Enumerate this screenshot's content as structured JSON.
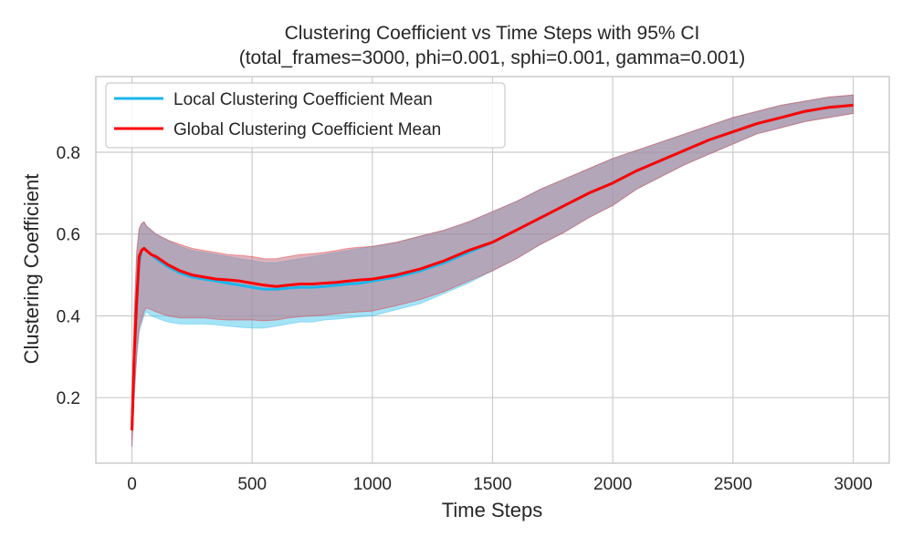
{
  "chart_data": {
    "type": "line",
    "title": "Clustering Coefficient vs Time Steps with 95% CI",
    "subtitle": "(total_frames=3000, phi=0.001, sphi=0.001, gamma=0.001)",
    "xlabel": "Time Steps",
    "ylabel": "Clustering Coefficient",
    "xlim": [
      -150,
      3150
    ],
    "ylim": [
      0.04,
      0.985
    ],
    "xticks": [
      0,
      500,
      1000,
      1500,
      2000,
      2500,
      3000
    ],
    "yticks": [
      0.2,
      0.4,
      0.6,
      0.8
    ],
    "grid": true,
    "legend_position": "top-left",
    "series": [
      {
        "name": "Local Clustering Coefficient Mean",
        "color": "#1ab6ec",
        "band_color": "#4cc7f0",
        "x": [
          0,
          10,
          20,
          30,
          40,
          50,
          60,
          80,
          100,
          150,
          200,
          250,
          300,
          350,
          400,
          450,
          500,
          550,
          600,
          650,
          700,
          750,
          800,
          850,
          900,
          950,
          1000,
          1100,
          1200,
          1300,
          1400,
          1500,
          1600,
          1700,
          1800,
          1900,
          2000,
          2100,
          2200,
          2300,
          2400,
          2500,
          2600,
          2700,
          2800,
          2900,
          3000
        ],
        "y": [
          0.12,
          0.3,
          0.43,
          0.53,
          0.56,
          0.565,
          0.56,
          0.55,
          0.54,
          0.52,
          0.505,
          0.495,
          0.49,
          0.485,
          0.48,
          0.475,
          0.47,
          0.465,
          0.465,
          0.468,
          0.47,
          0.47,
          0.472,
          0.475,
          0.478,
          0.48,
          0.485,
          0.495,
          0.51,
          0.53,
          0.555,
          0.58,
          0.61,
          0.64,
          0.67,
          0.7,
          0.725,
          0.755,
          0.78,
          0.805,
          0.83,
          0.85,
          0.87,
          0.885,
          0.9,
          0.91,
          0.915
        ],
        "ci_lower": [
          0.08,
          0.2,
          0.3,
          0.36,
          0.38,
          0.4,
          0.41,
          0.4,
          0.395,
          0.385,
          0.38,
          0.38,
          0.38,
          0.378,
          0.375,
          0.372,
          0.37,
          0.37,
          0.375,
          0.38,
          0.385,
          0.385,
          0.39,
          0.392,
          0.395,
          0.398,
          0.4,
          0.415,
          0.43,
          0.455,
          0.48,
          0.51,
          0.54,
          0.575,
          0.605,
          0.64,
          0.67,
          0.71,
          0.74,
          0.77,
          0.795,
          0.82,
          0.845,
          0.86,
          0.875,
          0.885,
          0.895
        ],
        "ci_upper": [
          0.16,
          0.4,
          0.55,
          0.61,
          0.625,
          0.63,
          0.62,
          0.61,
          0.6,
          0.585,
          0.57,
          0.56,
          0.555,
          0.55,
          0.545,
          0.54,
          0.535,
          0.53,
          0.53,
          0.535,
          0.54,
          0.545,
          0.55,
          0.555,
          0.56,
          0.565,
          0.57,
          0.58,
          0.595,
          0.61,
          0.63,
          0.655,
          0.68,
          0.71,
          0.735,
          0.76,
          0.785,
          0.805,
          0.825,
          0.845,
          0.865,
          0.885,
          0.9,
          0.915,
          0.925,
          0.935,
          0.94
        ]
      },
      {
        "name": "Global Clustering Coefficient Mean",
        "color": "#ff0000",
        "band_color": "#c07585",
        "x": [
          0,
          10,
          20,
          30,
          40,
          50,
          60,
          80,
          100,
          150,
          200,
          250,
          300,
          350,
          400,
          450,
          500,
          550,
          600,
          650,
          700,
          750,
          800,
          850,
          900,
          950,
          1000,
          1100,
          1200,
          1300,
          1400,
          1500,
          1600,
          1700,
          1800,
          1900,
          2000,
          2100,
          2200,
          2300,
          2400,
          2500,
          2600,
          2700,
          2800,
          2900,
          3000
        ],
        "y": [
          0.12,
          0.31,
          0.44,
          0.545,
          0.56,
          0.565,
          0.56,
          0.55,
          0.545,
          0.525,
          0.51,
          0.5,
          0.495,
          0.49,
          0.488,
          0.485,
          0.48,
          0.475,
          0.472,
          0.475,
          0.478,
          0.478,
          0.48,
          0.482,
          0.485,
          0.488,
          0.49,
          0.5,
          0.515,
          0.535,
          0.56,
          0.58,
          0.61,
          0.64,
          0.67,
          0.7,
          0.725,
          0.755,
          0.78,
          0.805,
          0.83,
          0.85,
          0.87,
          0.885,
          0.9,
          0.91,
          0.915
        ],
        "ci_lower": [
          0.08,
          0.21,
          0.31,
          0.37,
          0.39,
          0.41,
          0.42,
          0.415,
          0.41,
          0.4,
          0.395,
          0.395,
          0.395,
          0.392,
          0.39,
          0.39,
          0.39,
          0.388,
          0.39,
          0.395,
          0.398,
          0.4,
          0.402,
          0.405,
          0.408,
          0.41,
          0.412,
          0.425,
          0.44,
          0.46,
          0.485,
          0.51,
          0.54,
          0.575,
          0.605,
          0.64,
          0.67,
          0.71,
          0.74,
          0.77,
          0.795,
          0.82,
          0.845,
          0.86,
          0.875,
          0.885,
          0.895
        ],
        "ci_upper": [
          0.16,
          0.41,
          0.56,
          0.615,
          0.625,
          0.63,
          0.62,
          0.61,
          0.6,
          0.585,
          0.575,
          0.565,
          0.56,
          0.555,
          0.55,
          0.548,
          0.545,
          0.54,
          0.54,
          0.545,
          0.55,
          0.552,
          0.555,
          0.56,
          0.565,
          0.568,
          0.57,
          0.58,
          0.595,
          0.61,
          0.63,
          0.655,
          0.68,
          0.71,
          0.735,
          0.76,
          0.785,
          0.805,
          0.825,
          0.845,
          0.865,
          0.885,
          0.9,
          0.915,
          0.925,
          0.935,
          0.94
        ]
      }
    ]
  }
}
